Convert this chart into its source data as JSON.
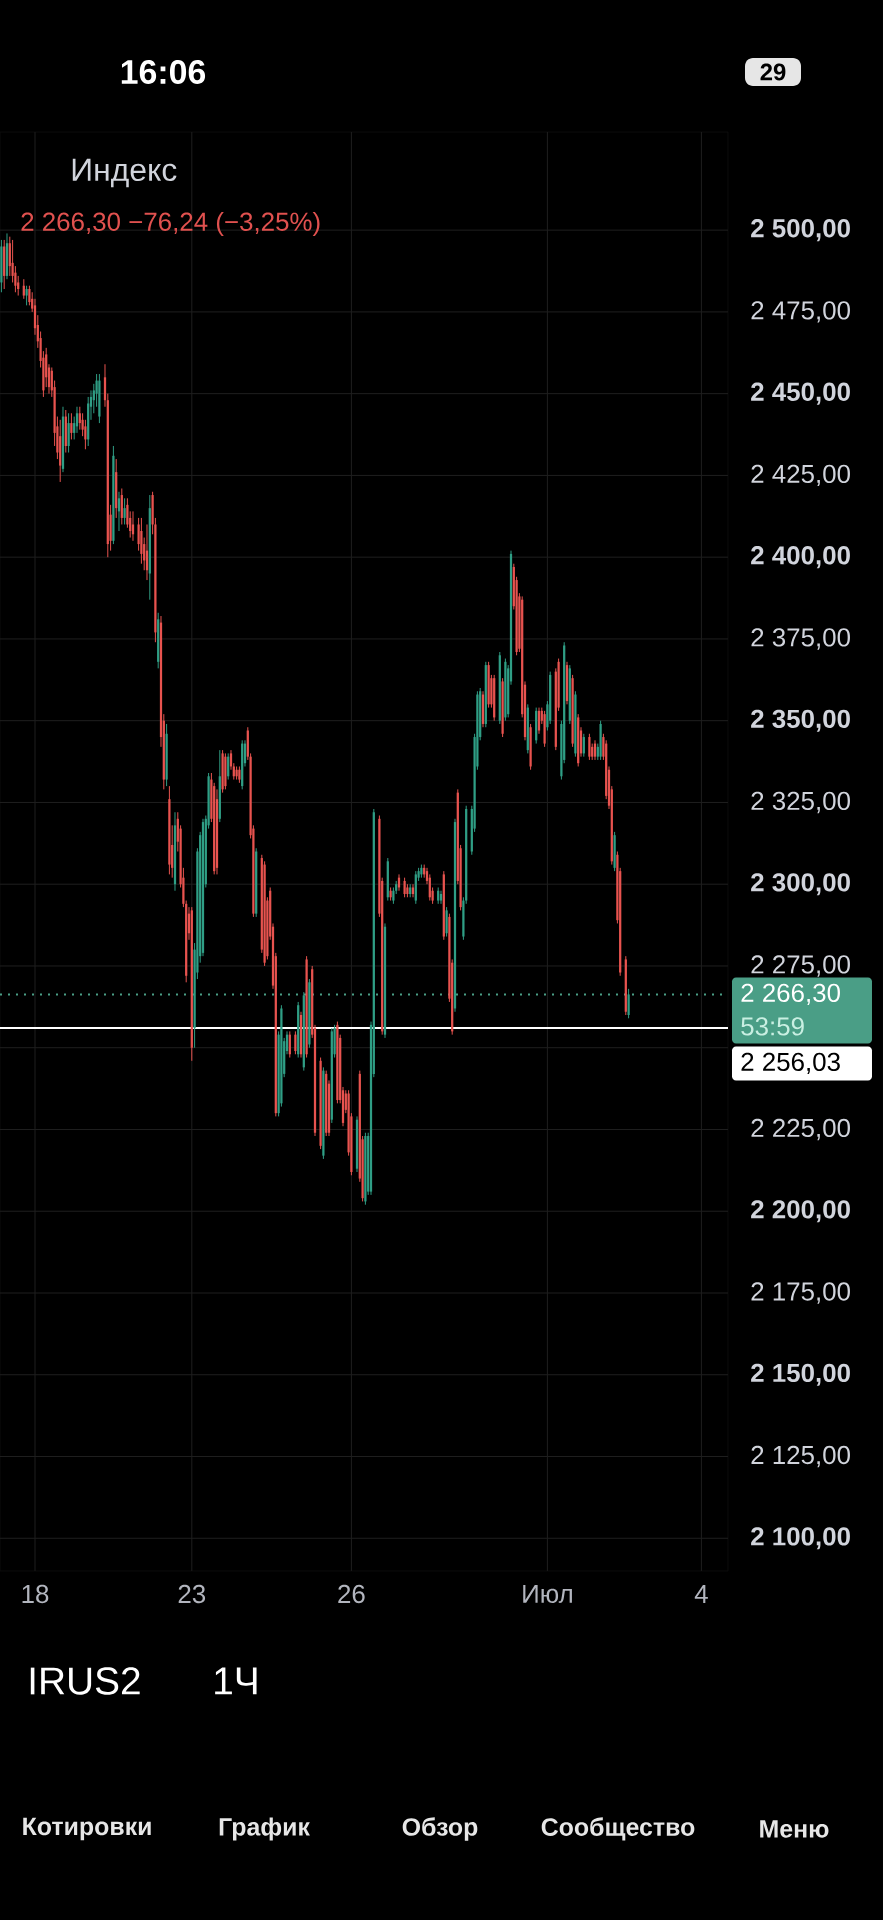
{
  "chart_data": {
    "type": "candlestick",
    "title": "Индекс",
    "subtitle": "2 266,30  −76,24 (−3,25%)",
    "annotations": [
      "16:06",
      "29",
      "53:59",
      "IRUS2",
      "1Ч",
      "Котировки",
      "График",
      "Обзор",
      "Сообщество",
      "Меню"
    ],
    "categories": [
      null,
      null,
      null,
      null,
      null,
      null,
      null,
      null,
      null,
      null,
      null,
      null,
      "18",
      null,
      null,
      null,
      null,
      null,
      null,
      null,
      null,
      null,
      null,
      null,
      null,
      null,
      null,
      null,
      null,
      null,
      null,
      null,
      null,
      null,
      null,
      null,
      null,
      null,
      null,
      null,
      null,
      null,
      null,
      null,
      null,
      null,
      null,
      null,
      null,
      null,
      null,
      null,
      null,
      null,
      null,
      null,
      null,
      null,
      null,
      null,
      null,
      null,
      null,
      null,
      null,
      null,
      null,
      null,
      "23",
      null,
      null,
      null,
      null,
      null,
      null,
      null,
      null,
      null,
      null,
      null,
      null,
      null,
      null,
      null,
      null,
      null,
      null,
      null,
      null,
      null,
      null,
      null,
      null,
      null,
      null,
      null,
      null,
      null,
      null,
      null,
      null,
      null,
      null,
      null,
      null,
      null,
      null,
      null,
      null,
      null,
      null,
      null,
      null,
      null,
      null,
      null,
      null,
      null,
      null,
      null,
      null,
      null,
      null,
      null,
      null,
      "26",
      null,
      null,
      null,
      null,
      null,
      null,
      null,
      null,
      null,
      null,
      null,
      null,
      null,
      null,
      null,
      null,
      null,
      null,
      null,
      null,
      null,
      null,
      null,
      null,
      null,
      null,
      null,
      null,
      null,
      null,
      null,
      null,
      null,
      null,
      null,
      null,
      null,
      null,
      null,
      null,
      null,
      null,
      null,
      null,
      null,
      null,
      null,
      null,
      null,
      null,
      null,
      null,
      null,
      null,
      null,
      null,
      null,
      null,
      null,
      null,
      null,
      null,
      null,
      null,
      null,
      null,
      null,
      null,
      null,
      "Июл",
      null,
      null,
      null,
      null,
      null,
      null,
      null,
      null,
      null,
      null,
      null,
      null,
      null,
      null,
      null,
      null,
      null,
      null,
      null,
      null,
      null,
      null,
      null,
      null,
      null,
      null,
      null,
      null,
      null,
      null,
      null,
      null,
      null,
      null,
      null,
      null,
      null,
      null,
      null,
      null,
      null,
      null,
      null,
      null,
      null,
      null,
      null,
      null,
      null,
      null,
      null,
      null,
      null,
      null,
      "4",
      null,
      null,
      null,
      null,
      null,
      null,
      null,
      null,
      null
    ],
    "ohlc": [
      [
        2484,
        2497,
        2481,
        2495
      ],
      [
        2495,
        2497,
        2482,
        2486
      ],
      [
        2486,
        2499,
        2485,
        2496
      ],
      [
        2496,
        2498,
        2486,
        2489
      ],
      [
        2490,
        2497,
        2484,
        2486
      ],
      [
        2487,
        2489,
        2481,
        2483
      ],
      [
        2484,
        2486,
        2480,
        2482
      ],
      null,
      [
        2483,
        2485,
        2479,
        2480
      ],
      [
        2480,
        2483,
        2477,
        2482
      ],
      [
        2482,
        2483,
        2477,
        2478
      ],
      [
        2479,
        2481,
        2475,
        2476
      ],
      [
        2477,
        2479,
        2468,
        2470
      ],
      [
        2471,
        2474,
        2464,
        2466
      ],
      [
        2467,
        2469,
        2458,
        2460
      ],
      [
        2461,
        2463,
        2449,
        2451
      ],
      [
        2462,
        2464,
        2452,
        2455
      ],
      [
        2458,
        2459,
        2450,
        2452
      ],
      [
        2457,
        2458,
        2449,
        2451
      ],
      [
        2452,
        2454,
        2434,
        2438
      ],
      [
        2440,
        2443,
        2430,
        2432
      ],
      [
        2437,
        2442,
        2423,
        2428
      ],
      [
        2427,
        2446,
        2426,
        2443
      ],
      [
        2443,
        2445,
        2432,
        2434
      ],
      [
        2434,
        2444,
        2432,
        2441
      ],
      [
        2441,
        2444,
        2436,
        2438
      ],
      [
        2438,
        2443,
        2436,
        2441
      ],
      [
        2440,
        2446,
        2438,
        2444
      ],
      [
        2444,
        2446,
        2439,
        2441
      ],
      [
        2442,
        2444,
        2437,
        2439
      ],
      [
        2440,
        2442,
        2433,
        2436
      ],
      [
        2436,
        2449,
        2434,
        2447
      ],
      [
        2446,
        2451,
        2442,
        2449
      ],
      [
        2448,
        2453,
        2444,
        2451
      ],
      [
        2450,
        2456,
        2446,
        2454
      ],
      [
        2443,
        2456,
        2441,
        2454
      ],
      null,
      [
        2455,
        2459,
        2446,
        2448
      ],
      [
        2448,
        2450,
        2400,
        2404
      ],
      [
        2413,
        2416,
        2402,
        2405
      ],
      [
        2405,
        2434,
        2404,
        2431
      ],
      [
        2426,
        2430,
        2412,
        2415
      ],
      [
        2414,
        2420,
        2408,
        2418
      ],
      [
        2419,
        2421,
        2410,
        2412
      ],
      [
        2412,
        2418,
        2410,
        2415
      ],
      [
        2416,
        2418,
        2409,
        2410
      ],
      [
        2412,
        2414,
        2406,
        2408
      ],
      [
        2410,
        2414,
        2405,
        2407
      ],
      null,
      [
        2410,
        2412,
        2402,
        2404
      ],
      [
        2408,
        2412,
        2398,
        2401
      ],
      [
        2404,
        2406,
        2396,
        2399
      ],
      [
        2402,
        2410,
        2393,
        2396
      ],
      [
        2395,
        2419,
        2387,
        2415
      ],
      [
        2419,
        2420,
        2407,
        2410
      ],
      [
        2410,
        2412,
        2374,
        2377
      ],
      [
        2368,
        2383,
        2366,
        2381
      ],
      [
        2380,
        2382,
        2342,
        2345
      ],
      [
        2350,
        2352,
        2329,
        2332
      ],
      [
        2332,
        2349,
        2330,
        2346
      ],
      [
        2326,
        2330,
        2303,
        2306
      ],
      [
        2312,
        2318,
        2302,
        2305
      ],
      [
        2300,
        2322,
        2298,
        2318
      ],
      [
        2320,
        2322,
        2310,
        2313
      ],
      [
        2317,
        2318,
        2299,
        2300
      ],
      [
        2302,
        2305,
        2293,
        2294
      ],
      [
        2294,
        2295,
        2270,
        2272
      ],
      [
        2291,
        2293,
        2283,
        2285
      ],
      [
        2292,
        2293,
        2246,
        2250
      ],
      [
        2256,
        2282,
        2250,
        2280
      ],
      [
        2273,
        2311,
        2271,
        2310
      ],
      [
        2278,
        2316,
        2276,
        2315
      ],
      [
        2279,
        2320,
        2278,
        2319
      ],
      [
        2300,
        2321,
        2299,
        2320
      ],
      [
        2318,
        2334,
        2317,
        2333
      ],
      [
        2332,
        2334,
        2319,
        2320
      ],
      [
        2330,
        2331,
        2303,
        2304
      ],
      [
        2326,
        2329,
        2303,
        2305
      ],
      [
        2320,
        2341,
        2319,
        2333
      ],
      [
        2340,
        2341,
        2328,
        2329
      ],
      [
        2339,
        2340,
        2329,
        2330
      ],
      [
        2333,
        2340,
        2332,
        2339
      ],
      [
        2340,
        2341,
        2335,
        2336
      ],
      [
        2336,
        2337,
        2332,
        2333
      ],
      [
        2335,
        2336,
        2332,
        2333
      ],
      [
        2335,
        2336,
        2331,
        2332
      ],
      [
        2330,
        2344,
        2329,
        2343
      ],
      [
        2337,
        2344,
        2336,
        2343
      ],
      [
        2347,
        2348,
        2338,
        2339
      ],
      [
        2339,
        2340,
        2314,
        2315
      ],
      [
        2317,
        2318,
        2290,
        2291
      ],
      [
        2291,
        2311,
        2290,
        2310
      ],
      null,
      [
        2308,
        2309,
        2279,
        2280
      ],
      [
        2306,
        2307,
        2275,
        2276
      ],
      [
        2295,
        2296,
        2277,
        2278
      ],
      [
        2298,
        2299,
        2283,
        2284
      ],
      [
        2287,
        2288,
        2268,
        2269
      ],
      [
        2278,
        2279,
        2229,
        2230
      ],
      [
        2230,
        2255,
        2229,
        2254
      ],
      [
        2233,
        2263,
        2232,
        2262
      ],
      [
        2242,
        2253,
        2241,
        2252
      ],
      [
        2249,
        2255,
        2248,
        2254
      ],
      [
        2254,
        2255,
        2247,
        2248
      ],
      null,
      [
        2254,
        2255,
        2248,
        2249
      ],
      [
        2248,
        2264,
        2247,
        2263
      ],
      [
        2260,
        2261,
        2247,
        2248
      ],
      [
        2244,
        2267,
        2243,
        2266
      ],
      [
        2277,
        2278,
        2247,
        2248
      ],
      [
        2251,
        2271,
        2250,
        2270
      ],
      [
        2274,
        2275,
        2253,
        2254
      ],
      [
        2256,
        2257,
        2223,
        2224
      ],
      null,
      [
        2246,
        2247,
        2219,
        2220
      ],
      [
        2217,
        2244,
        2216,
        2243
      ],
      [
        2242,
        2243,
        2223,
        2224
      ],
      [
        2239,
        2240,
        2223,
        2224
      ],
      [
        2228,
        2256,
        2227,
        2255
      ],
      [
        2248,
        2257,
        2247,
        2256
      ],
      [
        2257,
        2258,
        2233,
        2234
      ],
      [
        2253,
        2254,
        2233,
        2234
      ],
      [
        2237,
        2238,
        2226,
        2227
      ],
      [
        2236,
        2237,
        2230,
        2231
      ],
      [
        2236,
        2237,
        2217,
        2218
      ],
      [
        2229,
        2230,
        2211,
        2212
      ],
      null,
      [
        2213,
        2229,
        2212,
        2228
      ],
      [
        2242,
        2243,
        2209,
        2210
      ],
      [
        2222,
        2223,
        2203,
        2204
      ],
      [
        2203,
        2224,
        2202,
        2223
      ],
      [
        2206,
        2224,
        2205,
        2223
      ],
      [
        2206,
        2258,
        2205,
        2257
      ],
      [
        2242,
        2323,
        2241,
        2322
      ],
      null,
      [
        2320,
        2321,
        2290,
        2291
      ],
      [
        2301,
        2302,
        2254,
        2255
      ],
      [
        2254,
        2288,
        2253,
        2287
      ],
      [
        2296,
        2308,
        2295,
        2307
      ],
      [
        2298,
        2299,
        2295,
        2296
      ],
      [
        2295,
        2299,
        2294,
        2298
      ],
      [
        2298,
        2301,
        2297,
        2300
      ],
      [
        2302,
        2303,
        2298,
        2299
      ],
      null,
      [
        2301,
        2302,
        2296,
        2297
      ],
      [
        2299,
        2300,
        2296,
        2297
      ],
      [
        2297,
        2300,
        2296,
        2299
      ],
      [
        2299,
        2300,
        2296,
        2297
      ],
      [
        2295,
        2304,
        2294,
        2303
      ],
      [
        2302,
        2305,
        2301,
        2304
      ],
      [
        2303,
        2306,
        2302,
        2305
      ],
      [
        2305,
        2306,
        2302,
        2303
      ],
      [
        2304,
        2305,
        2300,
        2301
      ],
      [
        2302,
        2303,
        2295,
        2296
      ],
      [
        2298,
        2299,
        2294,
        2295
      ],
      null,
      [
        2295,
        2299,
        2294,
        2298
      ],
      [
        2295,
        2298,
        2294,
        2297
      ],
      [
        2303,
        2304,
        2283,
        2284
      ],
      [
        2285,
        2293,
        2284,
        2292
      ],
      [
        2290,
        2291,
        2264,
        2265
      ],
      [
        2276,
        2277,
        2254,
        2255
      ],
      [
        2262,
        2320,
        2261,
        2319
      ],
      [
        2328,
        2329,
        2300,
        2301
      ],
      [
        2311,
        2312,
        2292,
        2293
      ],
      [
        2284,
        2296,
        2283,
        2295
      ],
      [
        2295,
        2324,
        2294,
        2323
      ],
      null,
      [
        2310,
        2324,
        2309,
        2323
      ],
      [
        2317,
        2346,
        2316,
        2345
      ],
      [
        2336,
        2359,
        2335,
        2358
      ],
      [
        2345,
        2360,
        2344,
        2359
      ],
      [
        2358,
        2359,
        2348,
        2349
      ],
      [
        2349,
        2368,
        2348,
        2367
      ],
      [
        2367,
        2368,
        2354,
        2355
      ],
      [
        2363,
        2364,
        2354,
        2355
      ],
      [
        2363,
        2364,
        2350,
        2351
      ],
      null,
      [
        2350,
        2371,
        2349,
        2370
      ],
      [
        2362,
        2363,
        2345,
        2346
      ],
      [
        2351,
        2369,
        2350,
        2368
      ],
      [
        2352,
        2367,
        2351,
        2366
      ],
      [
        2362,
        2402,
        2361,
        2401
      ],
      [
        2397,
        2398,
        2384,
        2385
      ],
      [
        2393,
        2394,
        2370,
        2371
      ],
      [
        2388,
        2389,
        2371,
        2372
      ],
      [
        2387,
        2388,
        2351,
        2352
      ],
      [
        2361,
        2362,
        2344,
        2345
      ],
      [
        2341,
        2355,
        2340,
        2354
      ],
      [
        2348,
        2349,
        2335,
        2336
      ],
      null,
      [
        2344,
        2354,
        2343,
        2353
      ],
      [
        2353,
        2354,
        2346,
        2347
      ],
      [
        2353,
        2354,
        2349,
        2350
      ],
      [
        2352,
        2353,
        2342,
        2343
      ],
      [
        2348,
        2356,
        2347,
        2355
      ],
      [
        2350,
        2365,
        2349,
        2364
      ],
      null,
      [
        2365,
        2366,
        2341,
        2342
      ],
      [
        2368,
        2369,
        2353,
        2354
      ],
      [
        2333,
        2350,
        2332,
        2349
      ],
      [
        2338,
        2374,
        2337,
        2373
      ],
      [
        2367,
        2368,
        2355,
        2356
      ],
      [
        2350,
        2367,
        2349,
        2366
      ],
      [
        2363,
        2364,
        2342,
        2343
      ],
      [
        2340,
        2359,
        2339,
        2358
      ],
      [
        2351,
        2352,
        2336,
        2337
      ],
      [
        2347,
        2348,
        2339,
        2340
      ],
      [
        2340,
        2346,
        2339,
        2345
      ],
      null,
      [
        2345,
        2346,
        2338,
        2339
      ],
      [
        2342,
        2343,
        2338,
        2339
      ],
      [
        2343,
        2344,
        2338,
        2339
      ],
      [
        2339,
        2343,
        2338,
        2342
      ],
      [
        2339,
        2350,
        2338,
        2349
      ],
      [
        2345,
        2346,
        2338,
        2339
      ],
      [
        2343,
        2344,
        2326,
        2327
      ],
      [
        2335,
        2336,
        2323,
        2324
      ],
      [
        2329,
        2330,
        2306,
        2307
      ],
      [
        2305,
        2316,
        2304,
        2315
      ],
      [
        2309,
        2310,
        2288,
        2289
      ],
      [
        2304,
        2305,
        2272,
        2273
      ],
      null,
      [
        2277,
        2278,
        2260,
        2261
      ],
      [
        2260,
        2268,
        2259,
        2266.3
      ],
      null,
      null,
      null,
      null,
      null,
      null,
      null,
      null,
      null,
      null,
      null,
      null,
      null,
      null,
      null,
      null,
      null,
      null,
      null,
      null,
      null,
      null,
      null,
      null,
      null,
      null,
      null,
      null,
      null,
      null,
      null,
      null,
      null,
      null,
      null
    ],
    "colors": [
      "#2f9e85",
      "#e8534f",
      "#2f9e85",
      "#e8534f",
      "#e8534f",
      "#e8534f",
      "#e8534f",
      null,
      "#e8534f",
      "#2f9e85",
      "#e8534f",
      "#e8534f",
      "#e8534f",
      "#e8534f",
      "#e8534f",
      "#e8534f",
      "#e8534f",
      "#e8534f",
      "#e8534f",
      "#e8534f",
      "#e8534f",
      "#e8534f",
      "#2f9e85",
      "#e8534f",
      "#2f9e85",
      "#e8534f",
      "#2f9e85",
      "#2f9e85",
      "#e8534f",
      "#e8534f",
      "#e8534f",
      "#2f9e85",
      "#2f9e85",
      "#2f9e85",
      "#2f9e85",
      "#2f9e85",
      null,
      "#e8534f",
      "#e8534f",
      "#e8534f",
      "#2f9e85",
      "#e8534f",
      "#2f9e85",
      "#e8534f",
      "#2f9e85",
      "#e8534f",
      "#e8534f",
      "#e8534f",
      null,
      "#e8534f",
      "#e8534f",
      "#e8534f",
      "#e8534f",
      "#2f9e85",
      "#e8534f",
      "#e8534f",
      "#2f9e85",
      "#e8534f",
      "#e8534f",
      "#2f9e85",
      "#e8534f",
      "#e8534f",
      "#2f9e85",
      "#e8534f",
      "#e8534f",
      "#e8534f",
      "#e8534f",
      "#e8534f",
      "#e8534f",
      "#2f9e85",
      "#2f9e85",
      "#2f9e85",
      "#2f9e85",
      "#2f9e85",
      "#2f9e85",
      "#e8534f",
      "#e8534f",
      "#e8534f",
      "#2f9e85",
      "#e8534f",
      "#e8534f",
      "#2f9e85",
      "#e8534f",
      "#e8534f",
      "#e8534f",
      "#e8534f",
      "#2f9e85",
      "#2f9e85",
      "#e8534f",
      "#e8534f",
      "#e8534f",
      "#2f9e85",
      null,
      "#e8534f",
      "#e8534f",
      "#e8534f",
      "#e8534f",
      "#e8534f",
      "#e8534f",
      "#2f9e85",
      "#2f9e85",
      "#2f9e85",
      "#2f9e85",
      "#e8534f",
      null,
      "#e8534f",
      "#2f9e85",
      "#e8534f",
      "#2f9e85",
      "#e8534f",
      "#2f9e85",
      "#e8534f",
      "#e8534f",
      null,
      "#e8534f",
      "#2f9e85",
      "#e8534f",
      "#e8534f",
      "#2f9e85",
      "#2f9e85",
      "#e8534f",
      "#e8534f",
      "#e8534f",
      "#e8534f",
      "#e8534f",
      "#e8534f",
      null,
      "#2f9e85",
      "#e8534f",
      "#e8534f",
      "#2f9e85",
      "#2f9e85",
      "#2f9e85",
      "#2f9e85",
      null,
      "#e8534f",
      "#e8534f",
      "#2f9e85",
      "#2f9e85",
      "#e8534f",
      "#2f9e85",
      "#2f9e85",
      "#e8534f",
      null,
      "#e8534f",
      "#e8534f",
      "#2f9e85",
      "#e8534f",
      "#2f9e85",
      "#2f9e85",
      "#2f9e85",
      "#e8534f",
      "#e8534f",
      "#e8534f",
      "#e8534f",
      null,
      "#2f9e85",
      "#2f9e85",
      "#e8534f",
      "#2f9e85",
      "#e8534f",
      "#e8534f",
      "#2f9e85",
      "#e8534f",
      "#e8534f",
      "#2f9e85",
      "#2f9e85",
      null,
      "#2f9e85",
      "#2f9e85",
      "#2f9e85",
      "#2f9e85",
      "#e8534f",
      "#2f9e85",
      "#e8534f",
      "#e8534f",
      "#e8534f",
      null,
      "#2f9e85",
      "#e8534f",
      "#2f9e85",
      "#2f9e85",
      "#2f9e85",
      "#e8534f",
      "#e8534f",
      "#e8534f",
      "#e8534f",
      "#e8534f",
      "#2f9e85",
      "#e8534f",
      null,
      "#2f9e85",
      "#e8534f",
      "#e8534f",
      "#e8534f",
      "#2f9e85",
      "#2f9e85",
      null,
      "#e8534f",
      "#e8534f",
      "#2f9e85",
      "#2f9e85",
      "#e8534f",
      "#2f9e85",
      "#e8534f",
      "#2f9e85",
      "#e8534f",
      "#e8534f",
      "#2f9e85",
      null,
      "#e8534f",
      "#e8534f",
      "#e8534f",
      "#2f9e85",
      "#2f9e85",
      "#e8534f",
      "#e8534f",
      "#e8534f",
      "#e8534f",
      "#2f9e85",
      "#e8534f",
      "#e8534f",
      null,
      "#e8534f",
      "#2f9e85",
      null,
      null,
      null,
      null,
      null,
      null,
      null,
      null,
      null,
      null,
      null,
      null,
      null,
      null,
      null,
      null,
      null,
      null,
      null,
      null,
      null,
      null,
      null,
      null,
      null,
      null,
      null,
      null,
      null,
      null,
      null,
      null,
      null,
      null,
      null
    ],
    "ylim": [
      2090,
      2530
    ],
    "yticks": [
      {
        "value": 2100,
        "label": "2 100,00"
      },
      {
        "value": 2125,
        "label": "2 125,00"
      },
      {
        "value": 2150,
        "label": "2 150,00"
      },
      {
        "value": 2175,
        "label": "2 175,00"
      },
      {
        "value": 2200,
        "label": "2 200,00"
      },
      {
        "value": 2225,
        "label": "2 225,00"
      },
      {
        "value": 2250,
        "label": null
      },
      {
        "value": 2275,
        "label": "2 275,00"
      },
      {
        "value": 2300,
        "label": "2 300,00"
      },
      {
        "value": 2325,
        "label": "2 325,00"
      },
      {
        "value": 2350,
        "label": "2 350,00"
      },
      {
        "value": 2375,
        "label": "2 375,00"
      },
      {
        "value": 2400,
        "label": "2 400,00"
      },
      {
        "value": 2425,
        "label": "2 425,00"
      },
      {
        "value": 2450,
        "label": "2 450,00"
      },
      {
        "value": 2475,
        "label": "2 475,00"
      },
      {
        "value": 2500,
        "label": "2 500,00"
      }
    ],
    "grid": true,
    "ref_lines": [
      {
        "axis": "y",
        "value": 2266.3,
        "label": "2 266,30",
        "color": "#4a9e86",
        "line_style": "dotted"
      },
      {
        "axis": "y",
        "value": 2256.03,
        "label": "2 256,03",
        "color": "#ffffff",
        "line_style": "solid"
      }
    ]
  }
}
